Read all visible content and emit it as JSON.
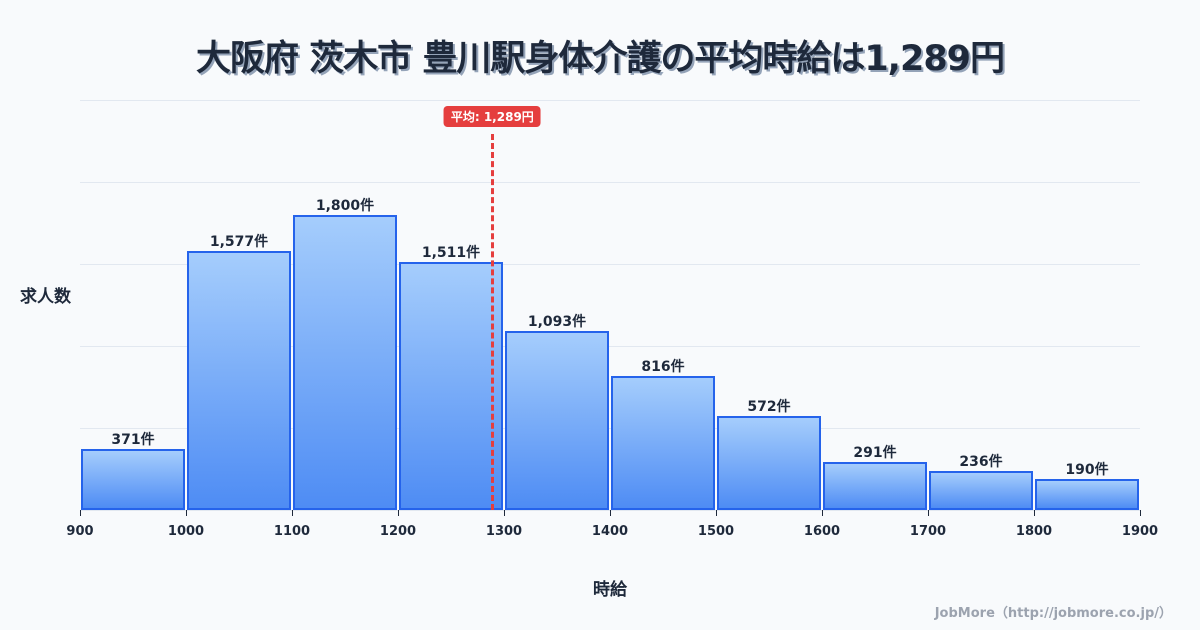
{
  "title": "大阪府 茨木市 豊川駅身体介護の平均時給は1,289円",
  "mean_badge": "平均: 1,289円",
  "ylabel": "求人数",
  "xlabel": "時給",
  "credit": "JobMore（http://jobmore.co.jp/）",
  "colors": {
    "bar_border": "#2563eb",
    "bar_top": "#a5cdfc",
    "bar_bottom": "#4e8cf4",
    "mean_line": "#e53e3e",
    "text": "#1e293b",
    "background": "#f8fafc"
  },
  "chart_data": {
    "type": "bar",
    "subtype": "histogram",
    "title": "大阪府 茨木市 豊川駅身体介護の平均時給は1,289円",
    "xlabel": "時給",
    "ylabel": "求人数",
    "bin_edges": [
      900,
      1000,
      1100,
      1200,
      1300,
      1400,
      1500,
      1600,
      1700,
      1800,
      1900
    ],
    "categories": [
      "900-1000",
      "1000-1100",
      "1100-1200",
      "1200-1300",
      "1300-1400",
      "1400-1500",
      "1500-1600",
      "1600-1700",
      "1700-1800",
      "1800-1900"
    ],
    "values": [
      371,
      1577,
      1800,
      1511,
      1093,
      816,
      572,
      291,
      236,
      190
    ],
    "value_labels": [
      "371件",
      "1,577件",
      "1,800件",
      "1,511件",
      "1,093件",
      "816件",
      "572件",
      "291件",
      "236件",
      "190件"
    ],
    "x_tick_labels": [
      "900",
      "1000",
      "1100",
      "1200",
      "1300",
      "1400",
      "1500",
      "1600",
      "1700",
      "1800",
      "1900"
    ],
    "xlim": [
      900,
      1900
    ],
    "ylim": [
      0,
      2500
    ],
    "grid": true,
    "annotations": [
      {
        "type": "vline",
        "x": 1289,
        "label": "平均: 1,289円",
        "style": "dashed",
        "color": "#e53e3e"
      }
    ],
    "legend": null
  }
}
